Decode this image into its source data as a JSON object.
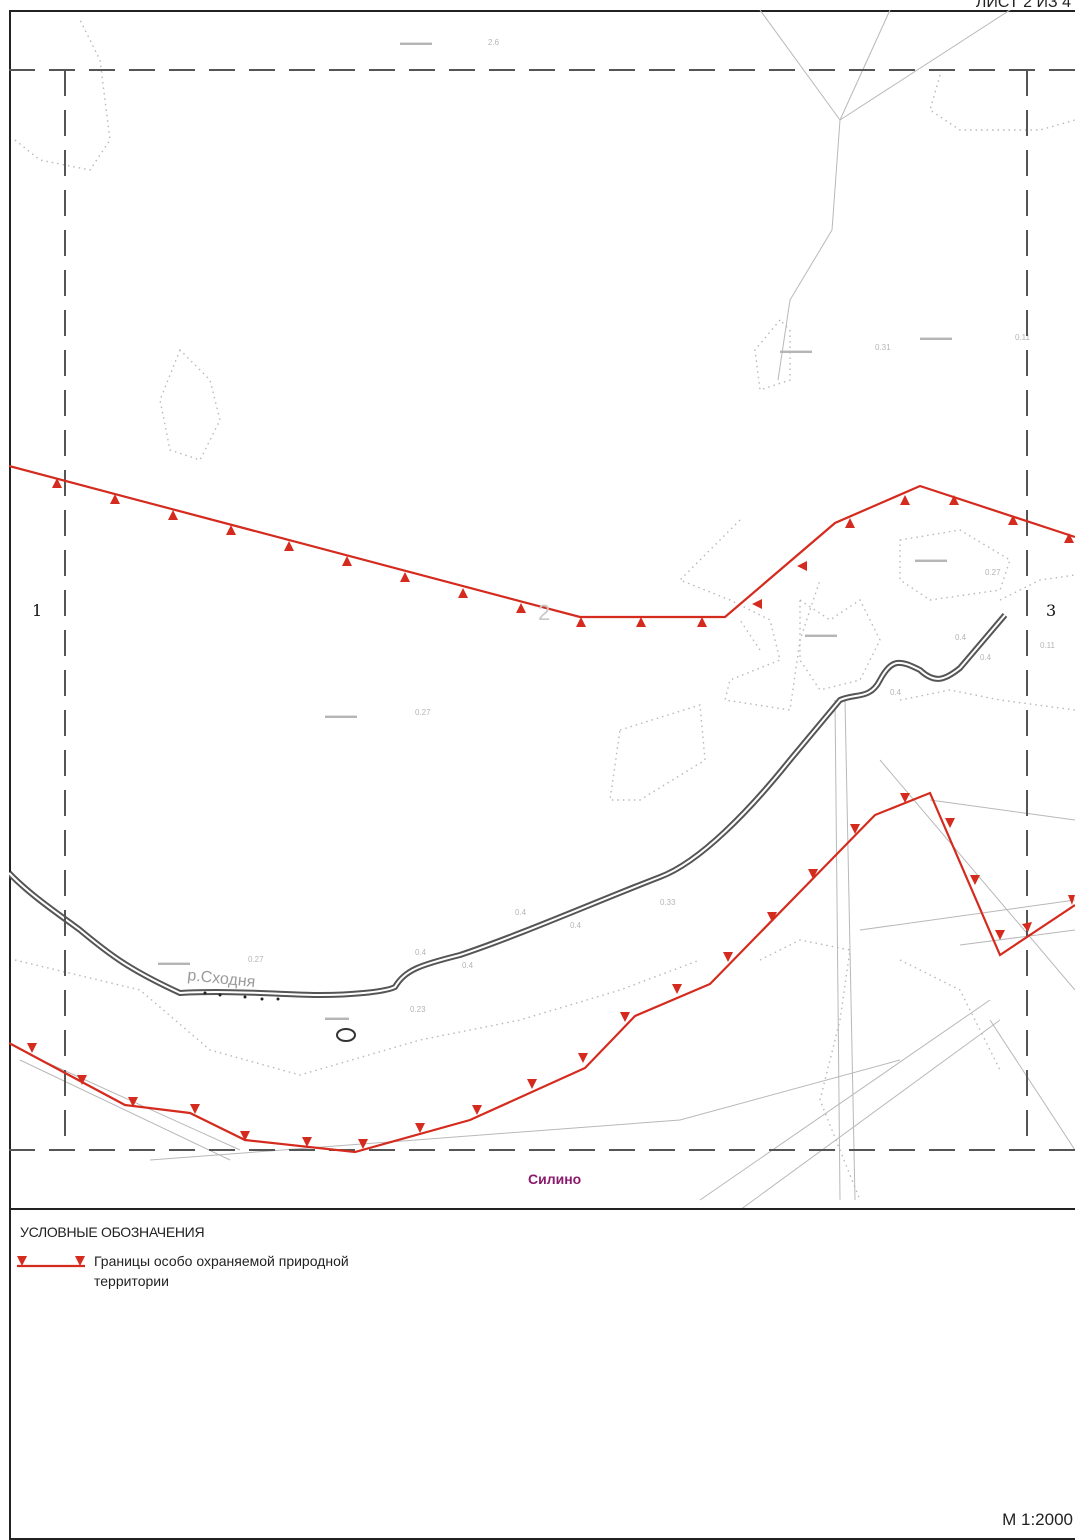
{
  "sheet": {
    "label": "ЛИСТ 2 ИЗ 4"
  },
  "map": {
    "neighbor_left": "1",
    "neighbor_right": "3",
    "sheet_number": "2",
    "settlement": "Силино",
    "river_label": "р.Сходня",
    "colors": {
      "boundary": "#d42b1e",
      "settlement": "#8a1a6e",
      "frame": "#222222",
      "dash_frame": "#555555",
      "topo": "#b8b8b8"
    }
  },
  "legend": {
    "title": "УСЛОВНЫЕ ОБОЗНАЧЕНИЯ",
    "items": [
      {
        "symbol": "red-triangle-boundary-line",
        "text": "Границы особо охраняемой природной территории"
      }
    ]
  },
  "scale": {
    "text": "М 1:2000"
  }
}
